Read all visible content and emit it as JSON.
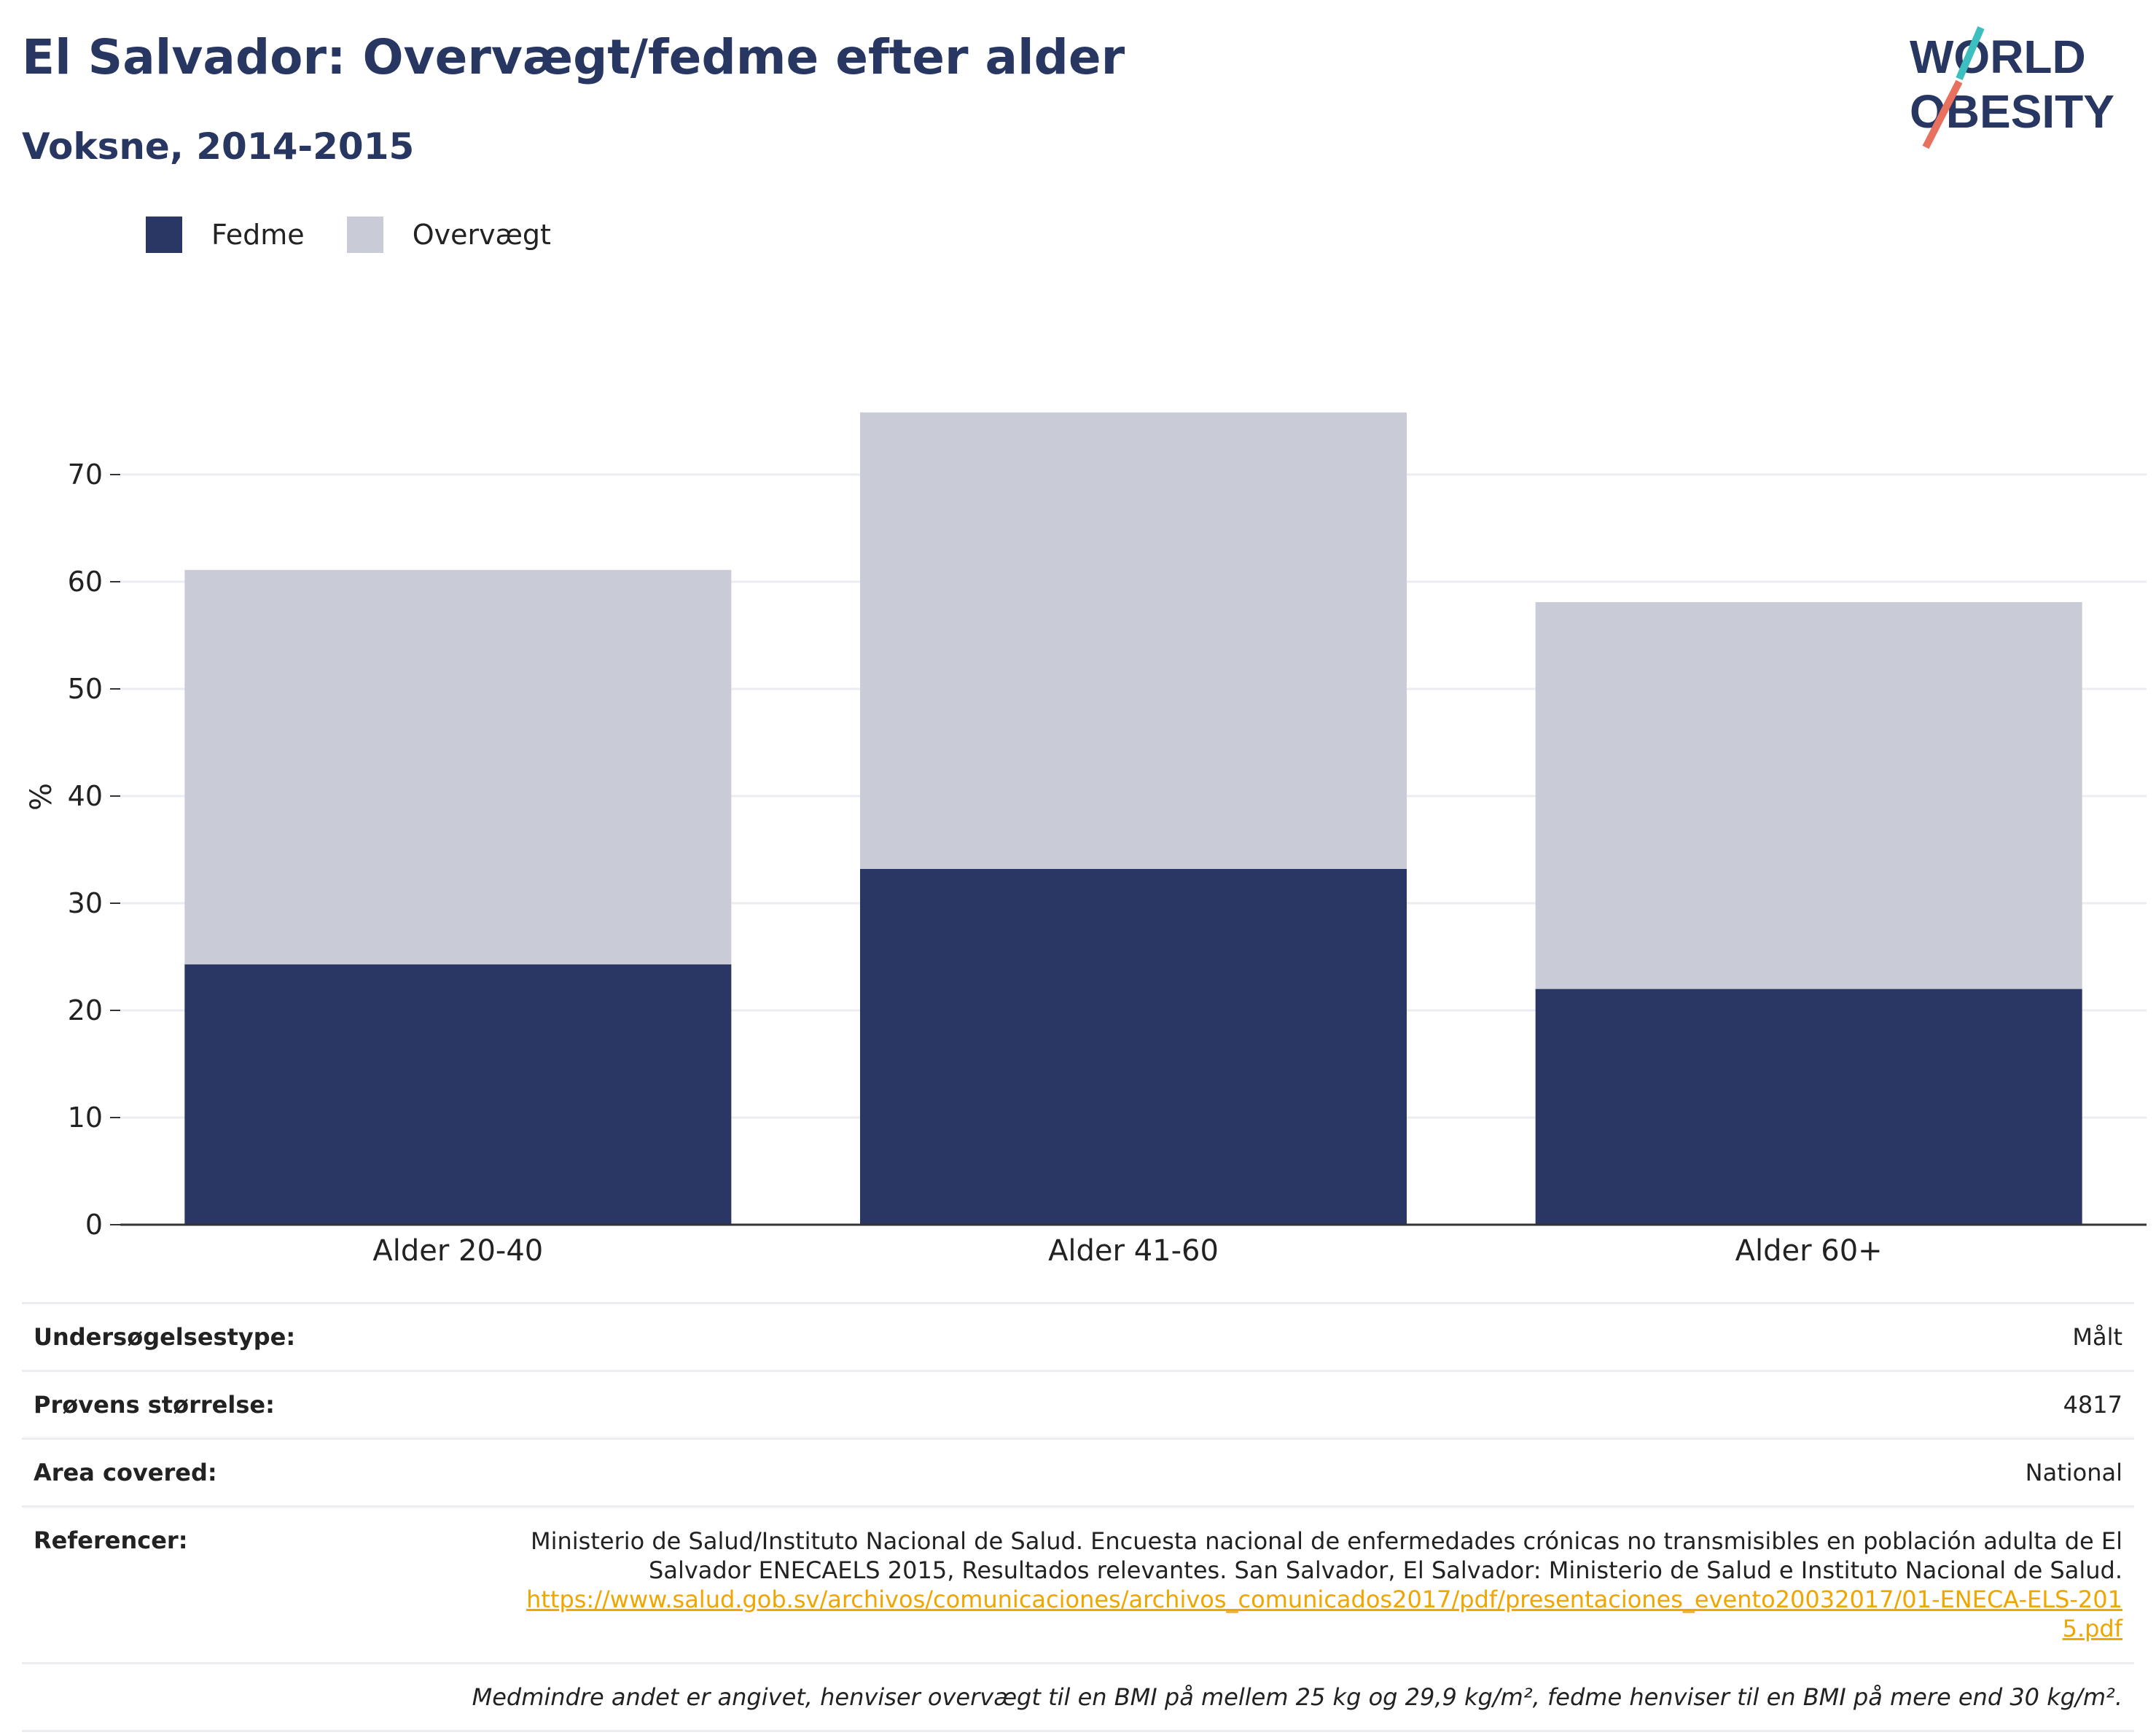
{
  "header": {
    "title": "El Salvador: Overvægt/fedme efter alder",
    "subtitle": "Voksne, 2014-2015"
  },
  "logo": {
    "line1": "WORLD",
    "line2": "OBESITY"
  },
  "colors": {
    "fedme": "#2a3663",
    "overvaegt": "#c9cbd7",
    "text": "#283662",
    "link": "#f0a500",
    "accent_teal": "#3dbfbf",
    "accent_red": "#e8705f"
  },
  "chart_data": {
    "type": "bar",
    "stacked": true,
    "categories": [
      "Alder 20-40",
      "Alder 41-60",
      "Alder 60+"
    ],
    "series": [
      {
        "name": "Fedme",
        "values": [
          24.3,
          33.2,
          22.0
        ]
      },
      {
        "name": "Overvægt",
        "values": [
          36.8,
          42.6,
          36.1
        ]
      }
    ],
    "ylabel": "%",
    "yticks": [
      0,
      10,
      20,
      30,
      40,
      50,
      60,
      70
    ],
    "ylim": [
      0,
      80
    ],
    "grid": true,
    "legend_position": "top-left"
  },
  "meta": {
    "survey_type_label": "Undersøgelsestype:",
    "survey_type_value": "Målt",
    "sample_size_label": "Prøvens størrelse:",
    "sample_size_value": "4817",
    "area_label": "Area covered:",
    "area_value": "National",
    "references_label": "Referencer:",
    "references_text": "Ministerio de Salud/Instituto Nacional de Salud. Encuesta nacional de enfermedades crónicas no transmisibles en población adulta de El Salvador ENECAELS 2015, Resultados relevantes. San Salvador, El Salvador: Ministerio de Salud e Instituto Nacional de Salud.",
    "references_link": "https://www.salud.gob.sv/archivos/comunicaciones/archivos_comunicados2017/pdf/presentaciones_evento20032017/01-ENECA-ELS-2015.pdf",
    "note": "Medmindre andet er angivet, henviser overvægt til en BMI på mellem 25 kg og 29,9 kg/m², fedme henviser til en BMI på mere end 30 kg/m²."
  }
}
